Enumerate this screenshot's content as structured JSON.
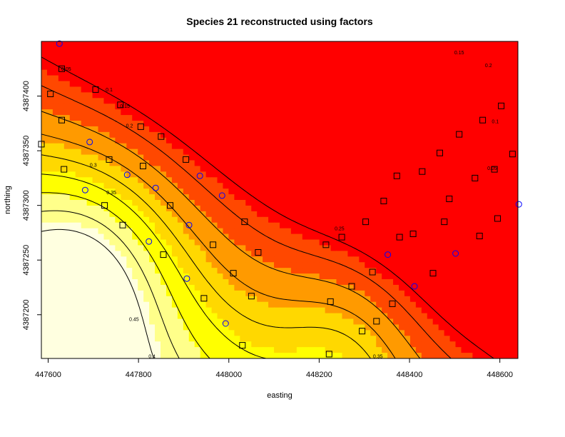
{
  "chart_data": {
    "type": "heatmap",
    "title": "Species 21 reconstructed using factors",
    "xlabel": "easting",
    "ylabel": "northing",
    "xlim": [
      447585,
      448640
    ],
    "ylim": [
      4387160,
      4387450
    ],
    "x_ticks": [
      447600,
      447800,
      448000,
      448200,
      448400,
      448600
    ],
    "y_ticks": [
      4387200,
      4387250,
      4387300,
      4387350,
      4387400
    ],
    "color_scale": [
      "#ff0000",
      "#ff4800",
      "#ff9a00",
      "#ffd800",
      "#ffff00",
      "#ffff8a",
      "#ffffe0"
    ],
    "grid": false,
    "legend": "none",
    "contour_levels": [
      0.05,
      0.1,
      0.15,
      0.2,
      0.25,
      0.3,
      0.35,
      0.4,
      0.45
    ],
    "contour_labels": [
      {
        "text": "0.05",
        "x": 447640,
        "y": 4387425
      },
      {
        "text": "0.1",
        "x": 447735,
        "y": 4387406
      },
      {
        "text": "0.15",
        "x": 447770,
        "y": 4387391
      },
      {
        "text": "0.2",
        "x": 447780,
        "y": 4387373
      },
      {
        "text": "0.3",
        "x": 447700,
        "y": 4387337
      },
      {
        "text": "0.35",
        "x": 447740,
        "y": 4387312
      },
      {
        "text": "0.25",
        "x": 448245,
        "y": 4387279
      },
      {
        "text": "0.45",
        "x": 447790,
        "y": 4387196
      },
      {
        "text": "0.4",
        "x": 447830,
        "y": 4387162
      },
      {
        "text": "0.35",
        "x": 448330,
        "y": 4387162
      },
      {
        "text": "0.15",
        "x": 448510,
        "y": 4387440
      },
      {
        "text": "0.2",
        "x": 448575,
        "y": 4387428
      },
      {
        "text": "0.1",
        "x": 448590,
        "y": 4387377
      },
      {
        "text": "0.05",
        "x": 448583,
        "y": 4387334
      }
    ],
    "series": [
      {
        "marker": "square",
        "color": "#000000",
        "points": [
          [
            447630,
            4387425
          ],
          [
            447605,
            4387402
          ],
          [
            447705,
            4387406
          ],
          [
            447760,
            4387392
          ],
          [
            447630,
            4387378
          ],
          [
            447805,
            4387372
          ],
          [
            447585,
            4387356
          ],
          [
            447850,
            4387363
          ],
          [
            447905,
            4387342
          ],
          [
            447735,
            4387342
          ],
          [
            447635,
            4387333
          ],
          [
            447810,
            4387336
          ],
          [
            447725,
            4387300
          ],
          [
            447870,
            4387300
          ],
          [
            447765,
            4387282
          ],
          [
            448035,
            4387285
          ],
          [
            447965,
            4387264
          ],
          [
            448065,
            4387257
          ],
          [
            447855,
            4387255
          ],
          [
            448010,
            4387238
          ],
          [
            447945,
            4387215
          ],
          [
            448050,
            4387217
          ],
          [
            448030,
            4387172
          ],
          [
            448215,
            4387264
          ],
          [
            448225,
            4387212
          ],
          [
            448250,
            4387271
          ],
          [
            448272,
            4387226
          ],
          [
            448303,
            4387285
          ],
          [
            448318,
            4387239
          ],
          [
            448343,
            4387304
          ],
          [
            448327,
            4387194
          ],
          [
            448295,
            4387185
          ],
          [
            448362,
            4387210
          ],
          [
            448372,
            4387327
          ],
          [
            448378,
            4387271
          ],
          [
            448428,
            4387331
          ],
          [
            448408,
            4387274
          ],
          [
            448452,
            4387238
          ],
          [
            448467,
            4387348
          ],
          [
            448488,
            4387306
          ],
          [
            448477,
            4387285
          ],
          [
            448510,
            4387365
          ],
          [
            448545,
            4387325
          ],
          [
            448555,
            4387272
          ],
          [
            448562,
            4387378
          ],
          [
            448588,
            4387333
          ],
          [
            448603,
            4387391
          ],
          [
            448628,
            4387347
          ],
          [
            448595,
            4387288
          ],
          [
            448222,
            4387164
          ]
        ]
      },
      {
        "marker": "circle",
        "color": "#0000ff",
        "points": [
          [
            447625,
            4387448
          ],
          [
            447692,
            4387358
          ],
          [
            447682,
            4387314
          ],
          [
            447775,
            4387328
          ],
          [
            447838,
            4387316
          ],
          [
            447823,
            4387267
          ],
          [
            447936,
            4387327
          ],
          [
            447912,
            4387282
          ],
          [
            447985,
            4387309
          ],
          [
            447907,
            4387233
          ],
          [
            447993,
            4387192
          ],
          [
            448352,
            4387255
          ],
          [
            448411,
            4387226
          ],
          [
            448502,
            4387256
          ],
          [
            448642,
            4387301
          ]
        ]
      }
    ]
  }
}
